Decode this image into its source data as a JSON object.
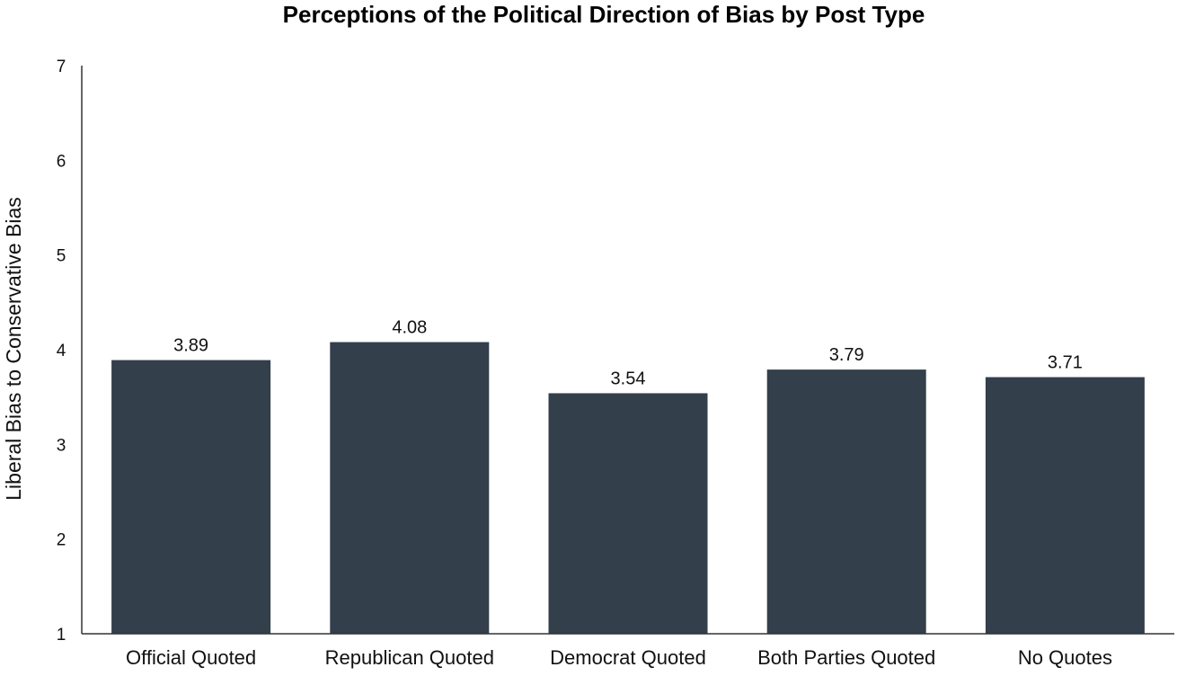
{
  "chart_data": {
    "type": "bar",
    "title": "Perceptions of the Political Direction of Bias by Post Type",
    "xlabel": "",
    "ylabel": "Liberal Bias to Conservative Bias",
    "categories": [
      "Official Quoted",
      "Republican Quoted",
      "Democrat Quoted",
      "Both Parties Quoted",
      "No Quotes"
    ],
    "values": [
      3.89,
      4.08,
      3.54,
      3.79,
      3.71
    ],
    "data_labels": [
      "3.89",
      "4.08",
      "3.54",
      "3.79",
      "3.71"
    ],
    "ylim": [
      1,
      7
    ],
    "yticks": [
      "1",
      "2",
      "3",
      "4",
      "5",
      "6",
      "7"
    ],
    "grid": false,
    "legend": "none",
    "bar_color": "#333f4a",
    "axis_color": "#333333",
    "text_color": "#111111"
  }
}
